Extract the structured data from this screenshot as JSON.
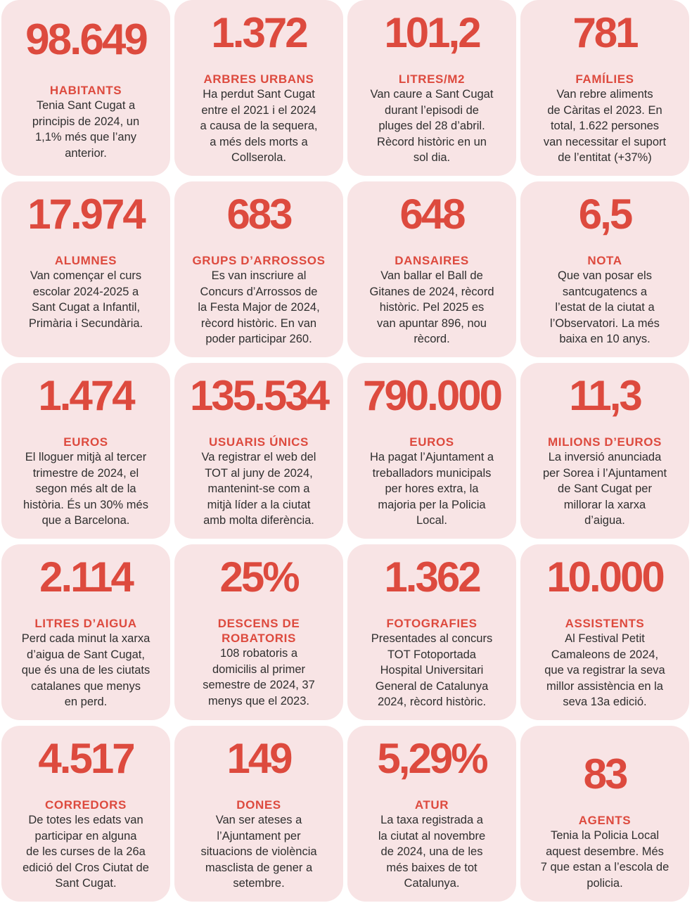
{
  "colors": {
    "accent": "#dd4a3e",
    "card": "#f8e4e5",
    "text": "#2f2f2f"
  },
  "cards": [
    {
      "number": "98.649",
      "label": "HABITANTS",
      "text": "Tenia Sant Cugat a\nprincipis de 2024, un\n1,1% més que l’any\nanterior."
    },
    {
      "number": "1.372",
      "label": "ARBRES URBANS",
      "text": "Ha perdut Sant Cugat\nentre el 2021 i el 2024\na causa de la sequera,\na més dels morts a\nCollserola."
    },
    {
      "number": "101,2",
      "label": "LITRES/M2",
      "text": "Van caure a Sant Cugat\ndurant l’episodi de\npluges del 28 d’abril.\nRècord històric en un\nsol dia."
    },
    {
      "number": "781",
      "label": "FAMÍLIES",
      "text": "Van rebre aliments\nde Càritas el 2023. En\ntotal, 1.622 persones\nvan necessitar el suport\nde l’entitat (+37%)"
    },
    {
      "number": "17.974",
      "label": "ALUMNES",
      "text": "Van començar el curs\nescolar 2024-2025 a\nSant Cugat a Infantil,\nPrimària i Secundària."
    },
    {
      "number": "683",
      "label": "GRUPS D’ARROSSOS",
      "text": "Es van inscriure al\nConcurs d’Arrossos de\nla Festa Major de 2024,\nrècord històric. En van\npoder participar 260."
    },
    {
      "number": "648",
      "label": "DANSAIRES",
      "text": "Van ballar el Ball de\nGitanes de 2024, rècord\nhistòric. Pel 2025 es\nvan apuntar 896, nou\nrècord."
    },
    {
      "number": "6,5",
      "label": "NOTA",
      "text": "Que van posar els\nsantcugatencs a\nl’estat de la ciutat a\nl’Observatori. La més\nbaixa en 10 anys."
    },
    {
      "number": "1.474",
      "label": "EUROS",
      "text": "El lloguer mitjà al tercer\ntrimestre de 2024, el\nsegon més alt de la\nhistòria. És un 30% més\nque a Barcelona."
    },
    {
      "number": "135.534",
      "label": "USUARIS ÚNICS",
      "text": "Va registrar el web del\nTOT al juny de 2024,\nmantenint-se com a\nmitjà líder a la ciutat\namb molta diferència."
    },
    {
      "number": "790.000",
      "label": "EUROS",
      "text": "Ha pagat l’Ajuntament a\ntreballadors municipals\nper hores extra, la\nmajoria per la Policia\nLocal."
    },
    {
      "number": "11,3",
      "label": "MILIONS D’EUROS",
      "text": "La inversió anunciada\nper Sorea i l’Ajuntament\nde Sant Cugat per\nmillorar la xarxa\nd’aigua."
    },
    {
      "number": "2.114",
      "label": "LITRES D’AIGUA",
      "text": "Perd cada minut la xarxa\nd’aigua de Sant Cugat,\nque és una de les ciutats\ncatalanes que menys\nen perd."
    },
    {
      "number": "25%",
      "label": "DESCENS DE\nROBATORIS",
      "text": "108 robatoris a\ndomicilis al primer\nsemestre de 2024, 37\nmenys que el 2023."
    },
    {
      "number": "1.362",
      "label": "FOTOGRAFIES",
      "text": "Presentades al concurs\nTOT Fotoportada\nHospital Universitari\nGeneral de Catalunya\n2024, rècord històric."
    },
    {
      "number": "10.000",
      "label": "ASSISTENTS",
      "text": "Al Festival Petit\nCamaleons de 2024,\nque va registrar la seva\nmillor assistència en la\nseva 13a edició."
    },
    {
      "number": "4.517",
      "label": "CORREDORS",
      "text": "De totes les edats van\nparticipar en alguna\nde les curses de la 26a\nedició del Cros Ciutat de\nSant Cugat."
    },
    {
      "number": "149",
      "label": "DONES",
      "text": "Van ser ateses a\nl’Ajuntament per\nsituacions de violència\nmasclista de gener a\nsetembre."
    },
    {
      "number": "5,29%",
      "label": "ATUR",
      "text": "La taxa registrada a\nla ciutat al novembre\nde 2024, una de les\nmés baixes de tot\nCatalunya."
    },
    {
      "number": "83",
      "label": "AGENTS",
      "text": "Tenia la Policia Local\naquest desembre. Més\n7 que estan a l’escola de\npolicia."
    }
  ]
}
